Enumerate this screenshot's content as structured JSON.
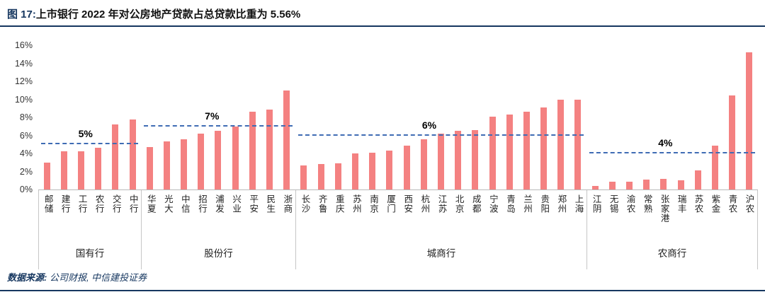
{
  "header": {
    "title_prefix": "图 17:",
    "title_rest": "上市银行 2022 年对公房地产贷款占总贷款比重为 5.56%"
  },
  "footer": {
    "source_label": "数据来源:",
    "source_text": " 公司财报, 中信建投证券"
  },
  "colors": {
    "bar": "#f48181",
    "dashed_line": "#3f6cb4",
    "accent_navy": "#15365f"
  },
  "chart_data": {
    "type": "bar",
    "title": "图 17:上市银行 2022 年对公房地产贷款占总贷款比重为 5.56%",
    "xlabel": "",
    "ylabel": "",
    "ylim": [
      0,
      16
    ],
    "y_ticks": [
      "16%",
      "14%",
      "12%",
      "10%",
      "8%",
      "6%",
      "4%",
      "2%",
      "0%"
    ],
    "grid": false,
    "legend": "none",
    "groups": [
      {
        "label": "国有行",
        "average_label": "5%",
        "average_value": 5,
        "banks": [
          "邮储",
          "建行",
          "工行",
          "农行",
          "交行",
          "中行"
        ],
        "values": [
          3.0,
          4.2,
          4.2,
          4.6,
          7.2,
          7.8
        ]
      },
      {
        "label": "股份行",
        "average_label": "7%",
        "average_value": 7,
        "banks": [
          "华夏",
          "光大",
          "中信",
          "招行",
          "浦发",
          "兴业",
          "平安",
          "民生",
          "浙商"
        ],
        "values": [
          4.7,
          5.3,
          5.6,
          6.2,
          6.5,
          7.0,
          8.6,
          8.9,
          11.0
        ]
      },
      {
        "label": "城商行",
        "average_label": "6%",
        "average_value": 6,
        "banks": [
          "长沙",
          "齐鲁",
          "重庆",
          "苏州",
          "南京",
          "厦门",
          "西安",
          "杭州",
          "江苏",
          "北京",
          "成都",
          "宁波",
          "青岛",
          "兰州",
          "贵阳",
          "郑州",
          "上海"
        ],
        "values": [
          2.7,
          2.8,
          2.9,
          4.0,
          4.1,
          4.3,
          4.9,
          5.6,
          6.2,
          6.5,
          6.6,
          8.1,
          8.3,
          8.6,
          9.1,
          10.0,
          10.0
        ]
      },
      {
        "label": "农商行",
        "average_label": "4%",
        "average_value": 4,
        "banks": [
          "江阴",
          "无锡",
          "渝农",
          "常熟",
          "张家港",
          "瑞丰",
          "苏农",
          "紫金",
          "青农",
          "沪农"
        ],
        "values": [
          0.4,
          0.9,
          0.9,
          1.1,
          1.2,
          1.0,
          2.1,
          4.9,
          10.4,
          15.2
        ]
      }
    ]
  }
}
